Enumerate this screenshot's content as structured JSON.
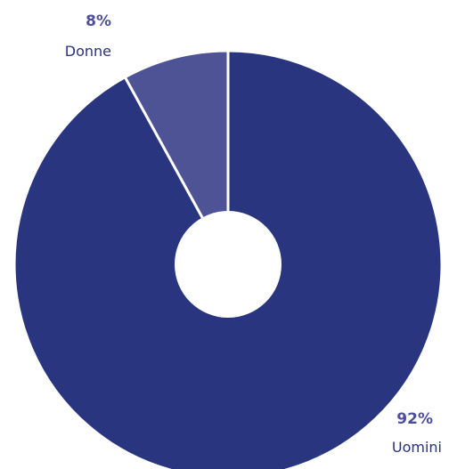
{
  "chart_data": {
    "type": "pie",
    "categories": [
      "Donne",
      "Uomini"
    ],
    "values": [
      8,
      92
    ],
    "value_labels": [
      "8%",
      "92%"
    ],
    "colors": [
      "#4e5396",
      "#29367f"
    ],
    "hole": true,
    "start": "top, clockwise: Uomini then Donne"
  }
}
